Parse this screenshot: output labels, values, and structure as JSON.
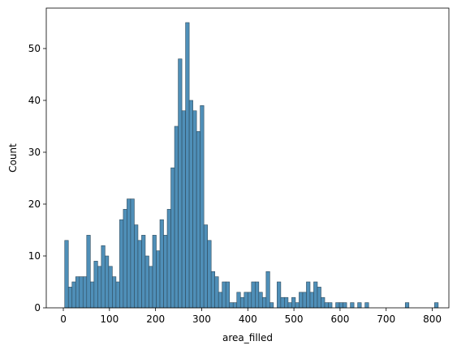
{
  "chart_data": {
    "type": "bar",
    "xlabel": "area_filled",
    "ylabel": "Count",
    "xlim": [
      -37,
      836
    ],
    "ylim": [
      0,
      57.8
    ],
    "x_ticks": [
      0,
      100,
      200,
      300,
      400,
      500,
      600,
      700,
      800
    ],
    "y_ticks": [
      0,
      10,
      20,
      30,
      40,
      50
    ],
    "bin_width": 7.94,
    "bin_start": 3,
    "grid": false,
    "bar_color": "#4f8fb8",
    "bar_edge_color": "#2e4a5c",
    "values": [
      13,
      4,
      5,
      6,
      6,
      6,
      14,
      5,
      9,
      8,
      12,
      10,
      8,
      6,
      5,
      17,
      19,
      21,
      21,
      16,
      13,
      14,
      10,
      8,
      14,
      11,
      17,
      14,
      19,
      27,
      35,
      48,
      38,
      55,
      40,
      38,
      34,
      39,
      16,
      13,
      7,
      6,
      3,
      5,
      5,
      1,
      1,
      3,
      2,
      3,
      3,
      5,
      5,
      3,
      2,
      7,
      1,
      0,
      5,
      2,
      2,
      1,
      2,
      1,
      3,
      3,
      5,
      3,
      5,
      4,
      2,
      1,
      1,
      0,
      1,
      1,
      1,
      0,
      1,
      0,
      1,
      0,
      1,
      0,
      0,
      0,
      0,
      0,
      0,
      0,
      0,
      0,
      0,
      1,
      0,
      0,
      0,
      0,
      0,
      0,
      0,
      1
    ]
  }
}
